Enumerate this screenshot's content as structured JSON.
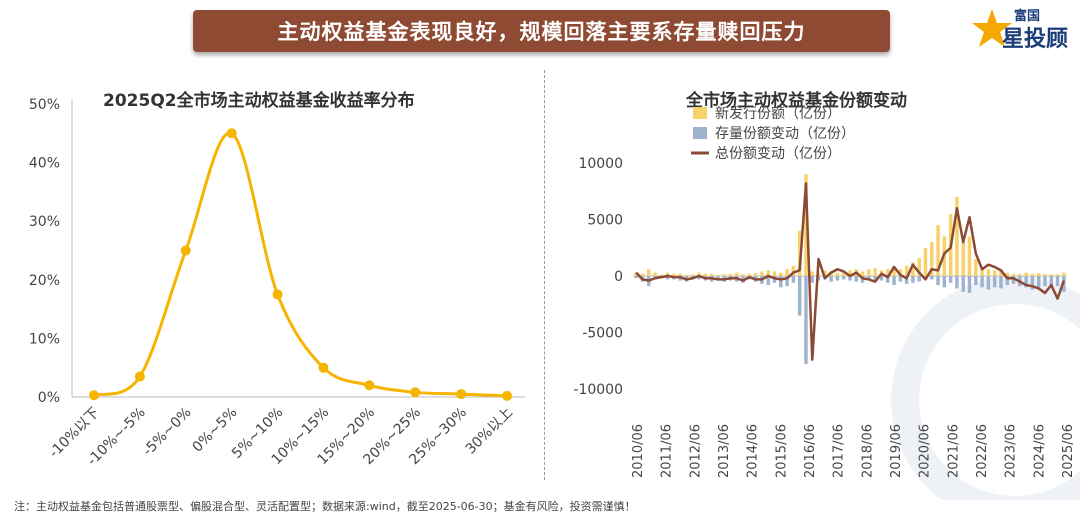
{
  "header": {
    "title": "主动权益基金表现良好，规模回落主要系存量赎回压力"
  },
  "logo": {
    "line1": "富国",
    "line2": "星投顾",
    "icon": "star-icon",
    "accent": "#f5a800"
  },
  "footnote": "注：主动权益基金包括普通股票型、偏股混合型、灵活配置型；数据来源:wind，截至2025-06-30；基金有风险，投资需谨慎！",
  "colors": {
    "banner": "#8f4a34",
    "left_line": "#f5b400",
    "new_issue": "#f7d16a",
    "stock_change": "#9fb3cf",
    "total_line": "#8b4a35"
  },
  "chart_data": [
    {
      "type": "line",
      "title": "2025Q2全市场主动权益基金收益率分布",
      "categories": [
        "-10%以下",
        "-10%~-5%",
        "-5%~0%",
        "0%~5%",
        "5%~10%",
        "10%~15%",
        "15%~20%",
        "20%~25%",
        "25%~30%",
        "30%以上"
      ],
      "values": [
        0.3,
        3.5,
        25.0,
        45.0,
        17.5,
        5.0,
        2.0,
        0.8,
        0.5,
        0.2
      ],
      "ylim": [
        0,
        50
      ],
      "yticks": [
        "0%",
        "10%",
        "20%",
        "30%",
        "40%",
        "50%"
      ],
      "smooth": true,
      "grid": false
    },
    {
      "type": "bar",
      "title": "全市场主动权益基金份额变动",
      "legend": [
        "新发行份额（亿份）",
        "存量份额变动（亿份）",
        "总份额变动（亿份）"
      ],
      "legend_position": "top",
      "x_labels": [
        "2010/06",
        "2011/06",
        "2012/06",
        "2013/06",
        "2014/06",
        "2015/06",
        "2016/06",
        "2017/06",
        "2018/06",
        "2019/06",
        "2020/06",
        "2021/06",
        "2022/06",
        "2023/06",
        "2024/06",
        "2025/06"
      ],
      "ylim": [
        -10000,
        10000
      ],
      "yticks": [
        "-10000",
        "-5000",
        "0",
        "5000",
        "10000"
      ],
      "series": [
        {
          "name": "新发行份额（亿份）",
          "type": "bar",
          "values": [
            300,
            200,
            600,
            300,
            100,
            300,
            200,
            200,
            100,
            150,
            300,
            200,
            200,
            100,
            150,
            200,
            300,
            150,
            200,
            250,
            400,
            500,
            400,
            300,
            600,
            900,
            4000,
            9000,
            400,
            300,
            500,
            400,
            300,
            350,
            500,
            600,
            400,
            600,
            700,
            500,
            600,
            800,
            600,
            900,
            1200,
            1600,
            2500,
            3000,
            4500,
            3500,
            5500,
            7000,
            3000,
            3500,
            1500,
            800,
            600,
            500,
            600,
            300,
            200,
            200,
            300,
            200,
            250,
            200,
            150,
            150,
            300
          ]
        },
        {
          "name": "存量份额变动（亿份）",
          "type": "bar",
          "values": [
            -200,
            -500,
            -900,
            -300,
            -200,
            -300,
            -300,
            -400,
            -500,
            -300,
            -300,
            -400,
            -500,
            -400,
            -500,
            -400,
            -500,
            -600,
            -300,
            -500,
            -700,
            -800,
            -600,
            -1000,
            -900,
            -600,
            -3500,
            -7800,
            -600,
            -400,
            -300,
            -500,
            -400,
            -300,
            -400,
            -500,
            -600,
            -400,
            -500,
            -400,
            -600,
            -800,
            -500,
            -700,
            -600,
            -500,
            -300,
            -300,
            -800,
            -1000,
            -600,
            -1100,
            -1400,
            -1500,
            -800,
            -1000,
            -1200,
            -1000,
            -1100,
            -800,
            -700,
            -900,
            -1000,
            -1200,
            -1000,
            -900,
            -1000,
            -900,
            -1400
          ]
        },
        {
          "name": "总份额变动（亿份）",
          "type": "line",
          "values": [
            300,
            -300,
            -400,
            -200,
            -100,
            0,
            -100,
            -100,
            -300,
            -200,
            0,
            -200,
            -200,
            -300,
            -300,
            -200,
            -200,
            -400,
            -100,
            -300,
            -300,
            0,
            -200,
            -300,
            -200,
            300,
            500,
            8200,
            -7400,
            1500,
            -200,
            300,
            600,
            400,
            0,
            300,
            -200,
            -300,
            -500,
            200,
            -100,
            800,
            100,
            -200,
            1000,
            300,
            -300,
            600,
            500,
            2000,
            2500,
            6000,
            3000,
            5200,
            2000,
            600,
            1000,
            800,
            500,
            -200,
            -200,
            -500,
            -800,
            -900,
            -1100,
            -1500,
            -800,
            -2000,
            -400
          ]
        }
      ]
    }
  ]
}
